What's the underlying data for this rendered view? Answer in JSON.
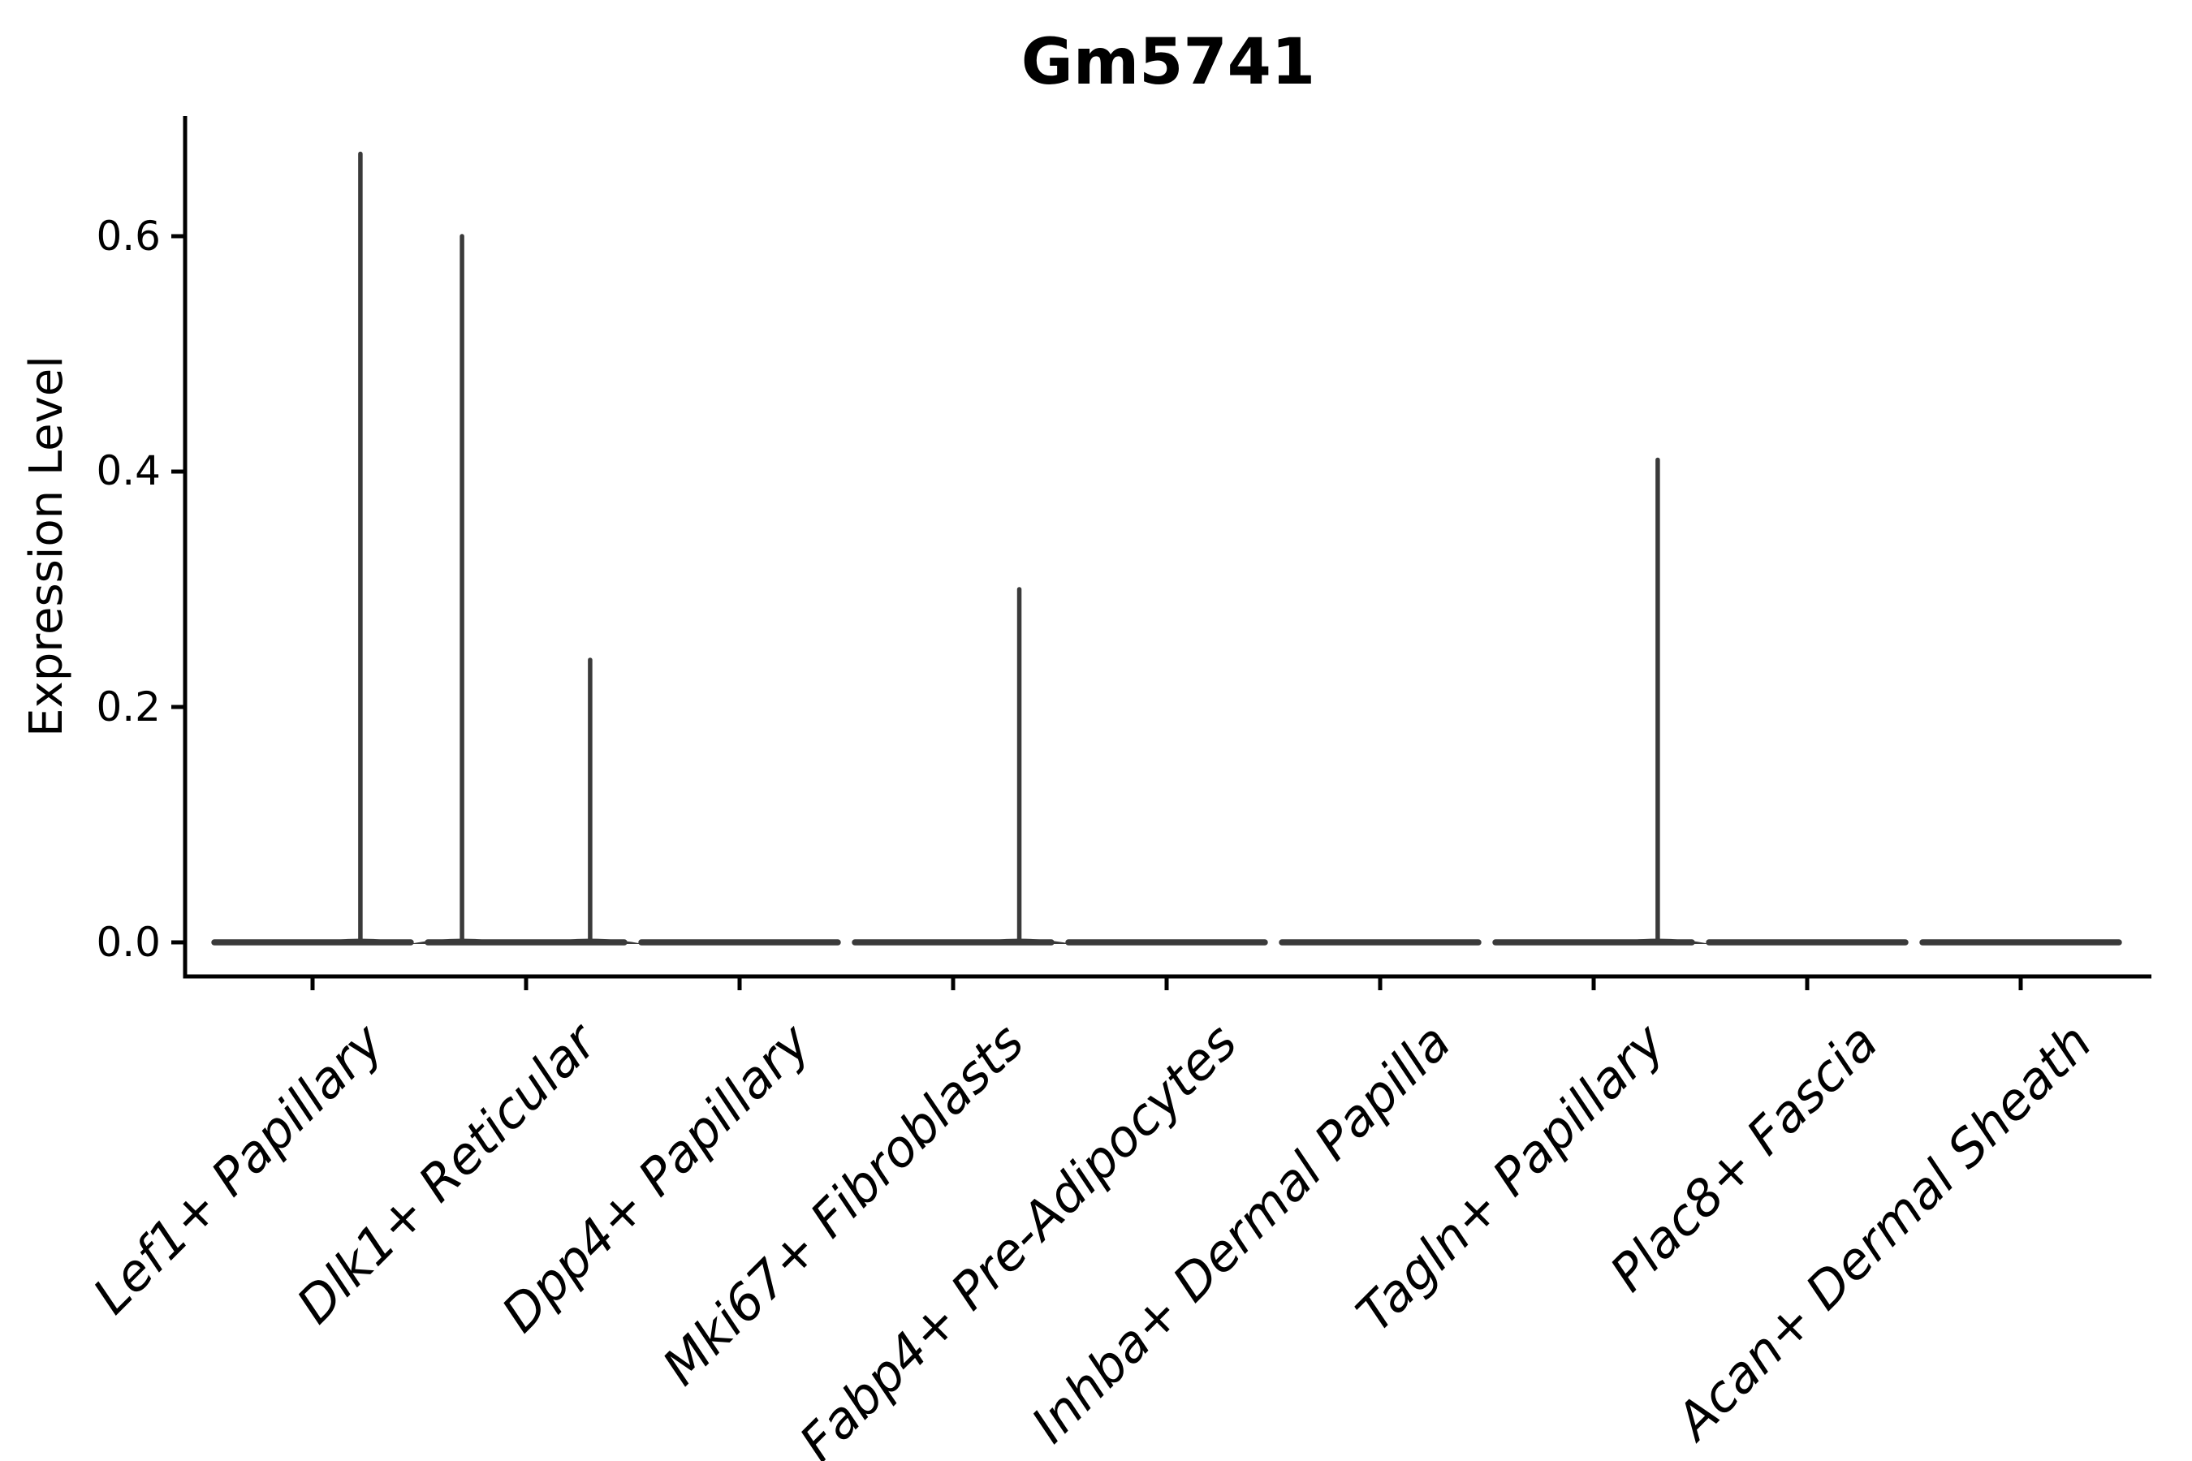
{
  "colors": {
    "background": "#ffffff",
    "violin": "#3a3a3a",
    "axis": "#000000",
    "text": "#000000"
  },
  "chart_data": {
    "type": "violin",
    "title": "Gm5741",
    "xlabel": "",
    "ylabel": "Expression Level",
    "y_ticks": [
      "0.0",
      "0.2",
      "0.4",
      "0.6"
    ],
    "y_tick_values": [
      0.0,
      0.2,
      0.4,
      0.6
    ],
    "ylim": [
      0,
      0.7
    ],
    "x_tick_rotation": 45,
    "grid": false,
    "legend": "none",
    "categories": [
      "Lef1+ Papillary",
      "Dlk1+ Reticular",
      "Dpp4+ Papillary",
      "Mki67+ Fibroblasts",
      "Fabp4+ Pre-Adipocytes",
      "Inhba+ Dermal Papilla",
      "Tagln+ Papillary",
      "Plac8+ Fascia",
      "Acan+ Dermal Sheath"
    ],
    "violins": [
      {
        "category": "Lef1+ Papillary",
        "base_value": 0.0,
        "base_halfwidth_frac": 0.46,
        "spikes": [
          {
            "offset_frac": 0.224,
            "value": 0.67
          }
        ]
      },
      {
        "category": "Dlk1+ Reticular",
        "base_value": 0.0,
        "base_halfwidth_frac": 0.46,
        "spikes": [
          {
            "offset_frac": -0.3,
            "value": 0.6
          },
          {
            "offset_frac": 0.3,
            "value": 0.24
          }
        ]
      },
      {
        "category": "Dpp4+ Papillary",
        "base_value": 0.0,
        "base_halfwidth_frac": 0.46,
        "spikes": []
      },
      {
        "category": "Mki67+ Fibroblasts",
        "base_value": 0.0,
        "base_halfwidth_frac": 0.46,
        "spikes": [
          {
            "offset_frac": 0.31,
            "value": 0.3
          }
        ]
      },
      {
        "category": "Fabp4+ Pre-Adipocytes",
        "base_value": 0.0,
        "base_halfwidth_frac": 0.46,
        "spikes": []
      },
      {
        "category": "Inhba+ Dermal Papilla",
        "base_value": 0.0,
        "base_halfwidth_frac": 0.46,
        "spikes": []
      },
      {
        "category": "Tagln+ Papillary",
        "base_value": 0.0,
        "base_halfwidth_frac": 0.46,
        "spikes": [
          {
            "offset_frac": 0.3,
            "value": 0.41
          }
        ]
      },
      {
        "category": "Plac8+ Fascia",
        "base_value": 0.0,
        "base_halfwidth_frac": 0.46,
        "spikes": []
      },
      {
        "category": "Acan+ Dermal Sheath",
        "base_value": 0.0,
        "base_halfwidth_frac": 0.46,
        "spikes": []
      }
    ]
  }
}
